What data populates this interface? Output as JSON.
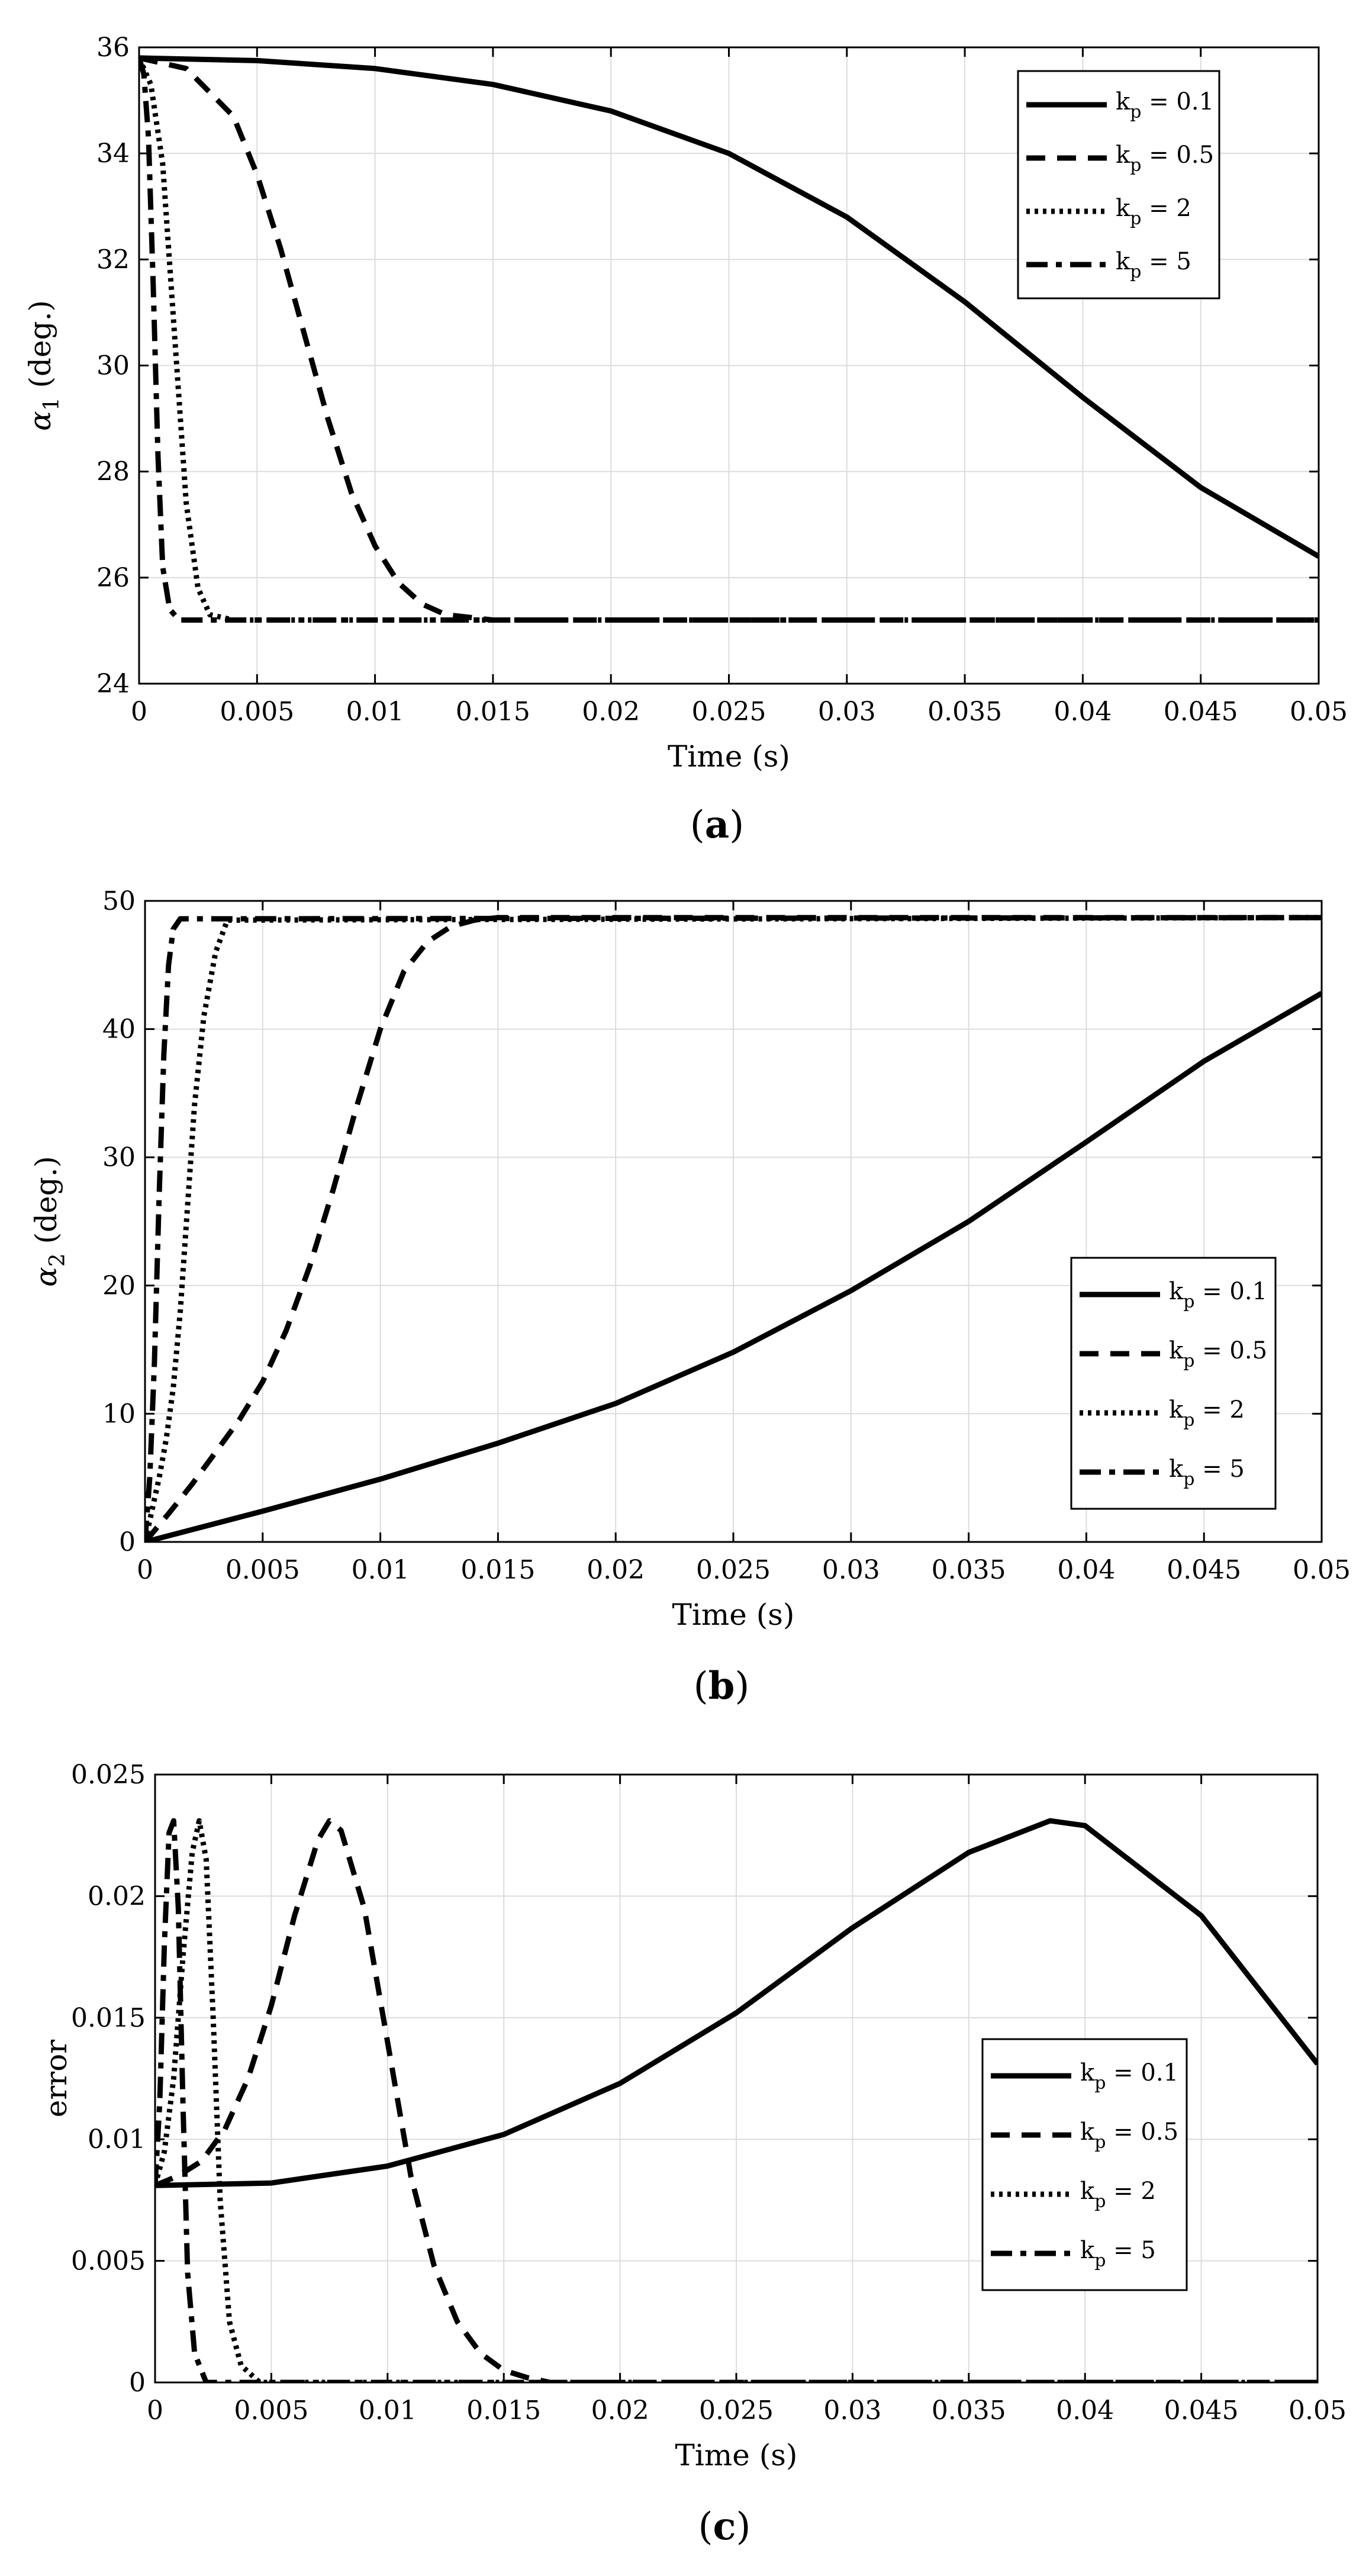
{
  "chart_data": [
    {
      "type": "line",
      "panel_label": "a",
      "xlabel": "Time (s)",
      "ylabel_symbol": "α",
      "ylabel_sub": "1",
      "ylabel_unit": " (deg.)",
      "xlim": [
        0,
        0.05
      ],
      "ylim": [
        24,
        36
      ],
      "xticks": [
        0,
        0.005,
        0.01,
        0.015,
        0.02,
        0.025,
        0.03,
        0.035,
        0.04,
        0.045,
        0.05
      ],
      "xtick_labels": [
        "0",
        "0.005",
        "0.01",
        "0.015",
        "0.02",
        "0.025",
        "0.03",
        "0.035",
        "0.04",
        "0.045",
        "0.05"
      ],
      "yticks": [
        24,
        26,
        28,
        30,
        32,
        34,
        36
      ],
      "ytick_labels": [
        "24",
        "26",
        "28",
        "30",
        "32",
        "34",
        "36"
      ],
      "grid": true,
      "legend_position": "top-right",
      "series": [
        {
          "name": "k_p = 0.1",
          "sub": "p",
          "label_prefix": "k",
          "label_suffix": " = 0.1",
          "style": "solid",
          "x": [
            0,
            0.005,
            0.01,
            0.015,
            0.02,
            0.025,
            0.03,
            0.035,
            0.04,
            0.045,
            0.05
          ],
          "y": [
            35.8,
            35.75,
            35.6,
            35.3,
            34.8,
            34.0,
            32.8,
            31.2,
            29.4,
            27.7,
            26.4
          ]
        },
        {
          "name": "k_p = 0.5",
          "sub": "p",
          "label_prefix": "k",
          "label_suffix": " = 0.5",
          "style": "dashed",
          "x": [
            0,
            0.002,
            0.004,
            0.005,
            0.006,
            0.007,
            0.008,
            0.009,
            0.01,
            0.011,
            0.012,
            0.013,
            0.015,
            0.05
          ],
          "y": [
            35.8,
            35.6,
            34.7,
            33.6,
            32.2,
            30.6,
            29.0,
            27.6,
            26.6,
            25.9,
            25.5,
            25.3,
            25.2,
            25.2
          ]
        },
        {
          "name": "k_p = 2",
          "sub": "p",
          "label_prefix": "k",
          "label_suffix": " = 2",
          "style": "dotted",
          "x": [
            0,
            0.0005,
            0.001,
            0.0015,
            0.002,
            0.0025,
            0.003,
            0.004,
            0.05
          ],
          "y": [
            35.8,
            35.3,
            33.8,
            30.6,
            27.4,
            25.8,
            25.3,
            25.2,
            25.2
          ]
        },
        {
          "name": "k_p = 5",
          "sub": "p",
          "label_prefix": "k",
          "label_suffix": " = 5",
          "style": "dashdot",
          "x": [
            0,
            0.0002,
            0.0004,
            0.0006,
            0.0008,
            0.001,
            0.0013,
            0.0017,
            0.05
          ],
          "y": [
            35.8,
            35.5,
            34.3,
            31.5,
            28.3,
            26.2,
            25.4,
            25.2,
            25.2
          ]
        }
      ]
    },
    {
      "type": "line",
      "panel_label": "b",
      "xlabel": "Time (s)",
      "ylabel_symbol": "α",
      "ylabel_sub": "2",
      "ylabel_unit": " (deg.)",
      "xlim": [
        0,
        0.05
      ],
      "ylim": [
        0,
        50
      ],
      "xticks": [
        0,
        0.005,
        0.01,
        0.015,
        0.02,
        0.025,
        0.03,
        0.035,
        0.04,
        0.045,
        0.05
      ],
      "xtick_labels": [
        "0",
        "0.005",
        "0.01",
        "0.015",
        "0.02",
        "0.025",
        "0.03",
        "0.035",
        "0.04",
        "0.045",
        "0.05"
      ],
      "yticks": [
        0,
        10,
        20,
        30,
        40,
        50
      ],
      "ytick_labels": [
        "0",
        "10",
        "20",
        "30",
        "40",
        "50"
      ],
      "grid": true,
      "legend_position": "center-right",
      "series": [
        {
          "name": "k_p = 0.1",
          "sub": "p",
          "label_prefix": "k",
          "label_suffix": " = 0.1",
          "style": "solid",
          "x": [
            0,
            0.005,
            0.01,
            0.015,
            0.02,
            0.025,
            0.03,
            0.035,
            0.04,
            0.045,
            0.05
          ],
          "y": [
            0,
            2.4,
            4.9,
            7.7,
            10.8,
            14.8,
            19.6,
            25.0,
            31.2,
            37.5,
            42.8
          ]
        },
        {
          "name": "k_p = 0.5",
          "sub": "p",
          "label_prefix": "k",
          "label_suffix": " = 0.5",
          "style": "dashed",
          "x": [
            0,
            0.001,
            0.002,
            0.003,
            0.004,
            0.005,
            0.006,
            0.007,
            0.008,
            0.009,
            0.01,
            0.011,
            0.012,
            0.013,
            0.014,
            0.015,
            0.05
          ],
          "y": [
            0,
            2.2,
            4.5,
            7.0,
            9.5,
            12.5,
            16.5,
            21.5,
            27.5,
            34.0,
            40.0,
            44.5,
            46.8,
            48.0,
            48.5,
            48.7,
            48.7
          ]
        },
        {
          "name": "k_p = 2",
          "sub": "p",
          "label_prefix": "k",
          "label_suffix": " = 2",
          "style": "dotted",
          "x": [
            0,
            0.0003,
            0.0006,
            0.0009,
            0.0012,
            0.0015,
            0.0018,
            0.0021,
            0.0025,
            0.003,
            0.0035,
            0.05
          ],
          "y": [
            0,
            2.5,
            5.0,
            8.0,
            12.0,
            18.0,
            26.0,
            34.0,
            41.0,
            46.0,
            48.5,
            48.7
          ]
        },
        {
          "name": "k_p = 5",
          "sub": "p",
          "label_prefix": "k",
          "label_suffix": " = 5",
          "style": "dashdot",
          "x": [
            0,
            0.0002,
            0.0004,
            0.0006,
            0.0008,
            0.001,
            0.0012,
            0.0015,
            0.05
          ],
          "y": [
            0,
            5.0,
            14.0,
            27.0,
            38.0,
            45.0,
            47.8,
            48.6,
            48.7
          ]
        }
      ]
    },
    {
      "type": "line",
      "panel_label": "c",
      "xlabel": "Time (s)",
      "ylabel_symbol": "",
      "ylabel_sub": "",
      "ylabel_unit": "error",
      "xlim": [
        0,
        0.05
      ],
      "ylim": [
        0,
        0.025
      ],
      "xticks": [
        0,
        0.005,
        0.01,
        0.015,
        0.02,
        0.025,
        0.03,
        0.035,
        0.04,
        0.045,
        0.05
      ],
      "xtick_labels": [
        "0",
        "0.005",
        "0.01",
        "0.015",
        "0.02",
        "0.025",
        "0.03",
        "0.035",
        "0.04",
        "0.045",
        "0.05"
      ],
      "yticks": [
        0,
        0.005,
        0.01,
        0.015,
        0.02,
        0.025
      ],
      "ytick_labels": [
        "0",
        "0.005",
        "0.01",
        "0.015",
        "0.02",
        "0.025"
      ],
      "grid": true,
      "legend_position": "center-right",
      "series": [
        {
          "name": "k_p = 0.1",
          "sub": "p",
          "label_prefix": "k",
          "label_suffix": " = 0.1",
          "style": "solid",
          "x": [
            0,
            0.005,
            0.01,
            0.015,
            0.02,
            0.025,
            0.03,
            0.035,
            0.0385,
            0.04,
            0.045,
            0.05
          ],
          "y": [
            0.0081,
            0.0082,
            0.0089,
            0.0102,
            0.0123,
            0.0152,
            0.0187,
            0.0218,
            0.0231,
            0.0229,
            0.0192,
            0.0131
          ]
        },
        {
          "name": "k_p = 0.5",
          "sub": "p",
          "label_prefix": "k",
          "label_suffix": " = 0.5",
          "style": "dashed",
          "x": [
            0,
            0.001,
            0.002,
            0.003,
            0.004,
            0.005,
            0.006,
            0.007,
            0.0075,
            0.008,
            0.009,
            0.01,
            0.011,
            0.012,
            0.013,
            0.014,
            0.015,
            0.016,
            0.017,
            0.05
          ],
          "y": [
            0.0081,
            0.0085,
            0.0091,
            0.0104,
            0.0125,
            0.0155,
            0.0192,
            0.0223,
            0.0231,
            0.0227,
            0.0195,
            0.014,
            0.0085,
            0.0048,
            0.0025,
            0.0012,
            0.0005,
            0.0002,
            0.0,
            0.0
          ]
        },
        {
          "name": "k_p = 2",
          "sub": "p",
          "label_prefix": "k",
          "label_suffix": " = 2",
          "style": "dotted",
          "x": [
            0,
            0.0004,
            0.0008,
            0.0012,
            0.0016,
            0.0019,
            0.0022,
            0.0025,
            0.0028,
            0.0032,
            0.0037,
            0.0045,
            0.05
          ],
          "y": [
            0.0081,
            0.0095,
            0.0125,
            0.0175,
            0.0218,
            0.0231,
            0.0215,
            0.015,
            0.0075,
            0.0025,
            0.0007,
            0.0,
            0.0
          ]
        },
        {
          "name": "k_p = 5",
          "sub": "p",
          "label_prefix": "k",
          "label_suffix": " = 5",
          "style": "dashdot",
          "x": [
            0,
            0.0002,
            0.0004,
            0.0006,
            0.0008,
            0.001,
            0.0012,
            0.0014,
            0.0017,
            0.0022,
            0.05
          ],
          "y": [
            0.0081,
            0.0115,
            0.018,
            0.0226,
            0.0231,
            0.0195,
            0.0115,
            0.0045,
            0.0012,
            0.0,
            0.0
          ]
        }
      ]
    }
  ]
}
